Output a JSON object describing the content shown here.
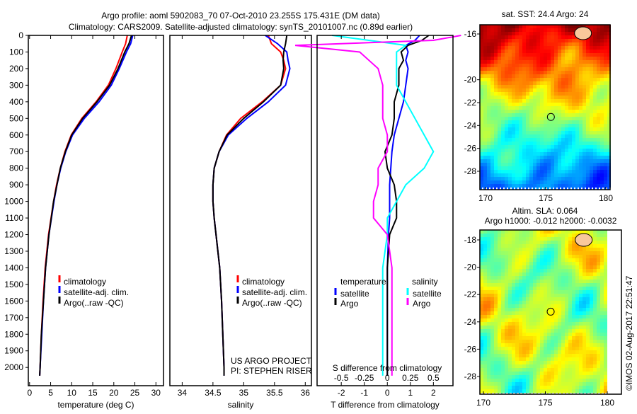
{
  "title_line1": "Argo profile: aoml 5902083_70 07-Oct-2010 23.255S 175.431E (DM data)",
  "title_line2": "Climatology: CARS2009. Satellite-adjusted climatology: synTS_20101007.nc (0.89d earlier)",
  "colors": {
    "climatology": "#ff0000",
    "satellite": "#0000ff",
    "argo": "#000000",
    "sal_satellite": "#00ffff",
    "sal_argo": "#ff00ff"
  },
  "chart_data": [
    {
      "type": "line",
      "name": "temperature",
      "xlabel": "temperature (deg C)",
      "xlim": [
        -0.3,
        31.8
      ],
      "ylim": [
        2110,
        0
      ],
      "xticks": [
        0,
        5,
        10,
        15,
        20,
        25,
        30
      ],
      "yticks": [
        0,
        100,
        200,
        300,
        400,
        500,
        600,
        700,
        800,
        900,
        1000,
        1100,
        1200,
        1300,
        1400,
        1500,
        1600,
        1700,
        1800,
        1900,
        2000
      ],
      "legend": [
        "climatology",
        "satellite-adj. clim.",
        "Argo(..raw -QC)"
      ],
      "depth": [
        0,
        50,
        100,
        200,
        300,
        400,
        500,
        600,
        700,
        800,
        900,
        1000,
        1200,
        1400,
        1600,
        1800,
        2000,
        2050
      ],
      "series": [
        {
          "name": "climatology",
          "values": [
            23.2,
            22.8,
            22.0,
            20.5,
            18.7,
            15.8,
            12.4,
            9.9,
            8.4,
            7.3,
            6.4,
            5.7,
            4.5,
            3.7,
            3.2,
            2.8,
            2.5,
            2.4
          ]
        },
        {
          "name": "satellite-adj. clim.",
          "values": [
            24.5,
            24.0,
            23.0,
            21.3,
            19.4,
            16.5,
            13.0,
            10.2,
            8.6,
            7.4,
            6.5,
            5.8,
            4.6,
            3.8,
            3.3,
            2.9,
            2.5,
            2.4
          ]
        },
        {
          "name": "Argo(..raw -QC)",
          "values": [
            24.2,
            23.6,
            22.6,
            21.0,
            19.0,
            16.0,
            12.6,
            10.0,
            8.5,
            7.3,
            6.5,
            5.7,
            4.6,
            3.8,
            3.3,
            2.8,
            2.5,
            2.4
          ]
        }
      ]
    },
    {
      "type": "line",
      "name": "salinity",
      "xlabel": "salinity",
      "xlim": [
        33.8,
        36.1
      ],
      "ylim": [
        2110,
        0
      ],
      "xticks": [
        34,
        34.5,
        35,
        35.5,
        36
      ],
      "legend": [
        "climatology",
        "satellite-adj. clim.",
        "Argo(..raw -QC)"
      ],
      "annotation": [
        "US ARGO PROJECT",
        "PI: STEPHEN RISER"
      ],
      "depth": [
        0,
        50,
        100,
        150,
        200,
        300,
        400,
        500,
        600,
        700,
        800,
        900,
        1000,
        1100,
        1200,
        1300,
        1400,
        1600,
        1800,
        2000,
        2050
      ],
      "series": [
        {
          "name": "climatology",
          "values": [
            35.4,
            35.45,
            35.6,
            35.65,
            35.68,
            35.6,
            35.3,
            34.95,
            34.72,
            34.6,
            34.52,
            34.5,
            34.5,
            34.52,
            34.55,
            34.58,
            34.61,
            34.64,
            34.66,
            34.68,
            34.68
          ]
        },
        {
          "name": "satellite-adj. clim.",
          "values": [
            35.35,
            35.55,
            35.7,
            35.72,
            35.75,
            35.68,
            35.4,
            35.05,
            34.75,
            34.6,
            34.52,
            34.5,
            34.5,
            34.52,
            34.55,
            34.58,
            34.61,
            34.64,
            34.66,
            34.68,
            34.68
          ]
        },
        {
          "name": "Argo(..raw -QC)",
          "values": [
            35.7,
            35.68,
            35.65,
            35.64,
            35.65,
            35.6,
            35.32,
            35.0,
            34.73,
            34.6,
            34.52,
            34.5,
            34.5,
            34.52,
            34.55,
            34.58,
            34.61,
            34.64,
            34.66,
            34.68,
            34.68
          ]
        }
      ]
    },
    {
      "type": "line",
      "name": "difference",
      "xlabel": "T difference from climatology",
      "xlim": [
        -3.05,
        2.85
      ],
      "ylim": [
        2110,
        0
      ],
      "xticks": [
        -2,
        -1,
        0,
        1,
        2
      ],
      "x2label": "S difference from climatology",
      "x2ticks": [
        "-0.5",
        "-0.25",
        "0",
        "0.25",
        "0.5"
      ],
      "legend_titles": [
        "temperature",
        "salinity"
      ],
      "legend": [
        "satellite",
        "Argo",
        "satellite",
        "Argo"
      ],
      "depth": [
        0,
        30,
        60,
        100,
        150,
        200,
        300,
        400,
        500,
        600,
        700,
        800,
        900,
        1000,
        1100,
        1200,
        1400,
        1600,
        1800,
        2000,
        2050
      ],
      "series": [
        {
          "name": "T satellite",
          "values": [
            1.4,
            1.2,
            0.8,
            0.9,
            0.8,
            0.9,
            0.8,
            0.7,
            0.5,
            0.3,
            0.2,
            0.15,
            0.1,
            0.1,
            0.1,
            0.05,
            0.0,
            0.0,
            0.0,
            0.0,
            0.0
          ]
        },
        {
          "name": "T Argo",
          "values": [
            1.8,
            1.5,
            0.9,
            0.6,
            0.7,
            0.5,
            0.5,
            0.3,
            0.3,
            0.2,
            -0.1,
            0.0,
            0.3,
            0.4,
            0.4,
            0.1,
            0.0,
            0.0,
            0.0,
            0.0,
            0.0
          ]
        },
        {
          "name": "S satellite",
          "values": [
            -0.6,
            -0.2,
            0.2,
            0.1,
            0.1,
            0.1,
            0.1,
            0.2,
            0.3,
            0.4,
            0.5,
            0.4,
            0.2,
            0.1,
            0.0,
            0.0,
            -0.05,
            -0.05,
            -0.05,
            -0.05,
            -0.05
          ]
        },
        {
          "name": "S Argo",
          "values": [
            0.8,
            0.5,
            -1.0,
            -0.3,
            -0.2,
            -0.1,
            -0.05,
            -0.05,
            -0.05,
            0.0,
            0.0,
            -0.1,
            -0.1,
            -0.15,
            -0.15,
            0.0,
            0.05,
            0.05,
            0.05,
            0.05,
            0.05
          ]
        }
      ]
    }
  ],
  "map_sst": {
    "title": "sat. SST: 24.4 Argo: 24",
    "lat_ticks": [
      "-16",
      "-20",
      "-22",
      "-24",
      "-26",
      "-28"
    ],
    "lon_ticks": [
      "170",
      "175",
      "180"
    ],
    "point": {
      "lon": 175.431,
      "lat": -23.255
    }
  },
  "map_sla": {
    "title1": "Altim. SLA: 0.064",
    "title2": "Argo h1000: -0.012 h2000: -0.0032",
    "lat_ticks": [
      "-18",
      "-20",
      "-22",
      "-24",
      "-26",
      "-28"
    ],
    "lon_ticks": [
      "170",
      "175",
      "180"
    ],
    "point": {
      "lon": 175.431,
      "lat": -23.255
    }
  },
  "credit": "©IMOS 02-Aug-2017 22:51:47"
}
